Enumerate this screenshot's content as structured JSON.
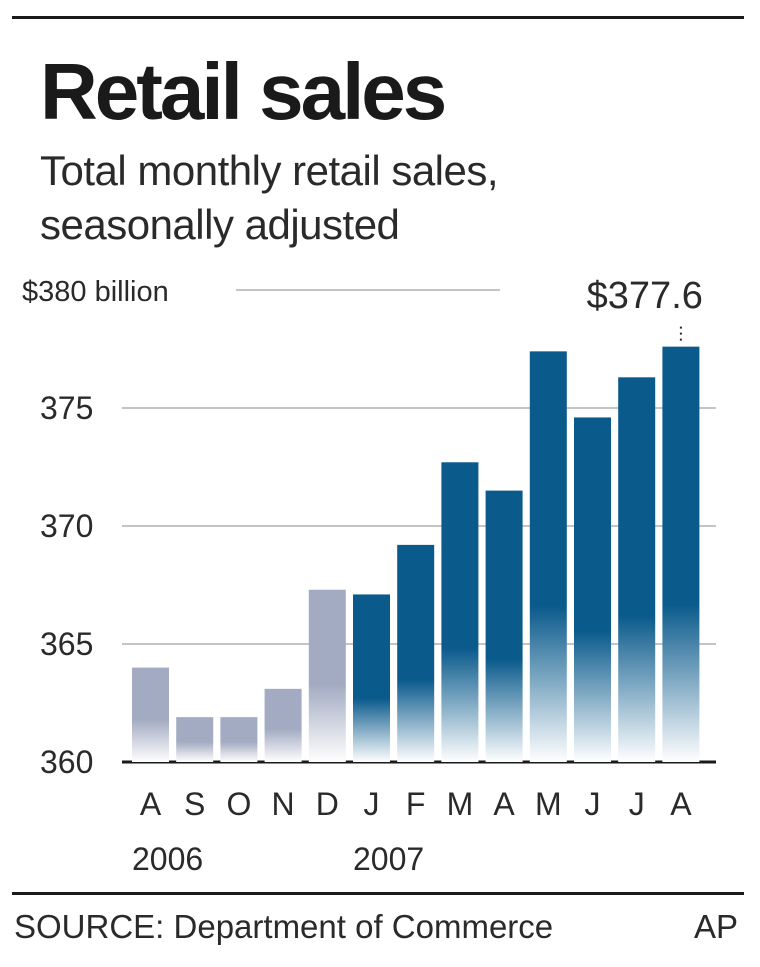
{
  "header": {
    "title": "Retail sales",
    "subtitle_line1": "Total monthly retail sales,",
    "subtitle_line2": "seasonally adjusted"
  },
  "chart_data": {
    "type": "bar",
    "title": "Retail sales",
    "subtitle": "Total monthly retail sales, seasonally adjusted",
    "unit": "$380 billion",
    "categories": [
      "A",
      "S",
      "O",
      "N",
      "D",
      "J",
      "F",
      "M",
      "A",
      "M",
      "J",
      "J",
      "A"
    ],
    "year_labels": [
      {
        "label": "2006",
        "category_index": 0
      },
      {
        "label": "2007",
        "category_index": 5
      }
    ],
    "values": [
      364.0,
      361.9,
      361.9,
      363.1,
      367.3,
      367.1,
      369.2,
      372.7,
      371.5,
      377.4,
      374.6,
      376.3,
      377.6
    ],
    "highlight_from_index": 5,
    "colors": {
      "2006": "#a3abc2",
      "2007": "#0a5a8c"
    },
    "yticks": [
      360,
      365,
      370,
      375,
      380
    ],
    "ytick_labels": [
      "360",
      "365",
      "370",
      "375",
      "$380 billion"
    ],
    "ylim": [
      360,
      380
    ],
    "grid": true,
    "annotation": {
      "index": 12,
      "text": "$377.6"
    }
  },
  "footer": {
    "source": "SOURCE: Department of Commerce",
    "credit": "AP"
  }
}
